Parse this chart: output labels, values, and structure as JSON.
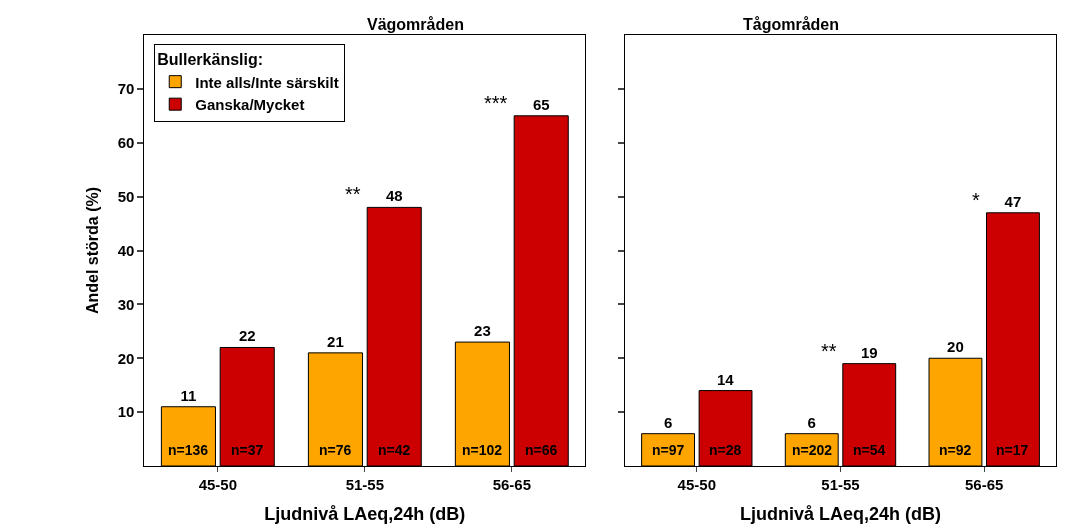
{
  "chart_data": [
    {
      "type": "bar",
      "title": "Vägområden",
      "xlabel": "Ljudnivå LAeq,24h (dB)",
      "ylabel": "Andel störda (%)",
      "legend_title": "Bullerkänslig:",
      "legend": "top left",
      "categories": [
        "45-50",
        "51-55",
        "56-65"
      ],
      "ylim": [
        0,
        80
      ],
      "yticks": [
        10,
        20,
        30,
        40,
        50,
        60,
        70
      ],
      "series": [
        {
          "name": "Inte alls/Inte särskilt",
          "color": "#ffa500",
          "values": [
            11,
            21,
            23
          ],
          "value_labels": [
            "11",
            "21",
            "23"
          ]
        },
        {
          "name": "Ganska/Mycket",
          "color": "#cc0000",
          "values": [
            22,
            48,
            65
          ],
          "value_labels": [
            "22",
            "48",
            "65"
          ]
        }
      ],
      "annotations": [
        {
          "text": "n=136",
          "x": "45-50",
          "y": 3
        },
        {
          "text": "n=37",
          "x": "45-50",
          "y": 3
        },
        {
          "text": "n=76",
          "x": "51-55",
          "y": 3
        },
        {
          "text": "n=42",
          "x": "51-55",
          "y": 3
        },
        {
          "text": "n=102",
          "x": "56-65",
          "y": 3
        },
        {
          "text": "n=66",
          "x": "56-65",
          "y": 3
        },
        {
          "text": "**",
          "x": "51-55",
          "y": 48
        },
        {
          "text": "***",
          "x": "56-65",
          "y": 65
        }
      ]
    },
    {
      "type": "bar",
      "title": "Tågområden",
      "xlabel": "Ljudnivå LAeq,24h (dB)",
      "legend": false,
      "tick_labels": "x",
      "categories": [
        "45-50",
        "51-55",
        "56-65"
      ],
      "ylim": [
        0,
        80
      ],
      "yticks": [
        10,
        20,
        30,
        40,
        50,
        60,
        70
      ],
      "series": [
        {
          "color": "#ffa500",
          "values": [
            6,
            6,
            20
          ],
          "value_labels": [
            "6",
            "6",
            "20"
          ]
        },
        {
          "color": "#cc0000",
          "values": [
            14,
            19,
            47
          ],
          "value_labels": [
            "14",
            "19",
            "47"
          ]
        }
      ],
      "annotations": [
        {
          "text": "n=97",
          "x": "45-50",
          "y": 3
        },
        {
          "text": "n=28",
          "x": "45-50",
          "y": 3
        },
        {
          "text": "n=202",
          "x": "51-55",
          "y": 3
        },
        {
          "text": "n=54",
          "x": "51-55",
          "y": 3
        },
        {
          "text": "n=92",
          "x": "56-65",
          "y": 3
        },
        {
          "text": "n=17",
          "x": "56-65",
          "y": 3
        },
        {
          "text": "**",
          "x": "51-55",
          "y": 19
        },
        {
          "text": "*",
          "x": "56-65",
          "y": 47
        }
      ]
    }
  ]
}
